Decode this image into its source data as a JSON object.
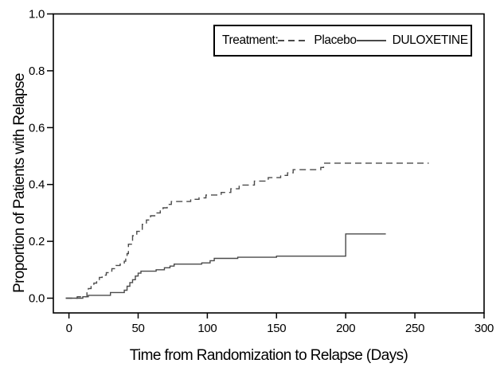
{
  "chart_data": {
    "type": "line",
    "subtype": "kaplan-meier-step",
    "title": "",
    "xlabel": "Time from Randomization to Relapse (Days)",
    "ylabel": "Proportion of Patients with Relapse",
    "xlim": [
      0,
      300
    ],
    "ylim": [
      0.0,
      1.0
    ],
    "xticks": [
      "0",
      "50",
      "100",
      "150",
      "200",
      "250",
      "300"
    ],
    "yticks": [
      "0.0",
      "0.2",
      "0.4",
      "0.6",
      "0.8",
      "1.0"
    ],
    "grid": false,
    "legend": {
      "prefix": "Treatment:",
      "position": "top-right-inside",
      "entries": [
        {
          "label": "Placebo",
          "style": "dashed"
        },
        {
          "label": "DULOXETINE",
          "style": "solid"
        }
      ]
    },
    "series": [
      {
        "name": "Placebo",
        "style": "dashed",
        "color": "#4a4a4a",
        "steps": [
          [
            0,
            0.0
          ],
          [
            6,
            0.005
          ],
          [
            13,
            0.022
          ],
          [
            14,
            0.034
          ],
          [
            16,
            0.045
          ],
          [
            18,
            0.053
          ],
          [
            20,
            0.062
          ],
          [
            22,
            0.073
          ],
          [
            24,
            0.081
          ],
          [
            27,
            0.09
          ],
          [
            29,
            0.095
          ],
          [
            31,
            0.104
          ],
          [
            34,
            0.115
          ],
          [
            37,
            0.12
          ],
          [
            40,
            0.13
          ],
          [
            41,
            0.14
          ],
          [
            42,
            0.157
          ],
          [
            43,
            0.19
          ],
          [
            46,
            0.22
          ],
          [
            49,
            0.235
          ],
          [
            53,
            0.26
          ],
          [
            56,
            0.275
          ],
          [
            59,
            0.29
          ],
          [
            63,
            0.3
          ],
          [
            66,
            0.31
          ],
          [
            68,
            0.318
          ],
          [
            71,
            0.33
          ],
          [
            74,
            0.34
          ],
          [
            88,
            0.348
          ],
          [
            94,
            0.353
          ],
          [
            99,
            0.363
          ],
          [
            110,
            0.372
          ],
          [
            117,
            0.385
          ],
          [
            123,
            0.398
          ],
          [
            134,
            0.412
          ],
          [
            144,
            0.424
          ],
          [
            153,
            0.432
          ],
          [
            158,
            0.441
          ],
          [
            162,
            0.452
          ],
          [
            182,
            0.46
          ],
          [
            184,
            0.475
          ]
        ],
        "end_day": 260
      },
      {
        "name": "DULOXETINE",
        "style": "solid",
        "color": "#4a4a4a",
        "steps": [
          [
            0,
            0.0
          ],
          [
            10,
            0.005
          ],
          [
            14,
            0.01
          ],
          [
            30,
            0.02
          ],
          [
            40,
            0.028
          ],
          [
            42,
            0.042
          ],
          [
            44,
            0.055
          ],
          [
            46,
            0.065
          ],
          [
            48,
            0.078
          ],
          [
            50,
            0.088
          ],
          [
            52,
            0.095
          ],
          [
            63,
            0.1
          ],
          [
            69,
            0.107
          ],
          [
            73,
            0.113
          ],
          [
            76,
            0.12
          ],
          [
            96,
            0.124
          ],
          [
            102,
            0.132
          ],
          [
            105,
            0.14
          ],
          [
            122,
            0.144
          ],
          [
            150,
            0.148
          ],
          [
            200,
            0.226
          ]
        ],
        "end_day": 229
      }
    ]
  },
  "colors": {
    "axis": "#000000",
    "text": "#000000",
    "background": "#ffffff",
    "placebo_line": "#4a4a4a",
    "duloxetine_line": "#4a4a4a"
  }
}
